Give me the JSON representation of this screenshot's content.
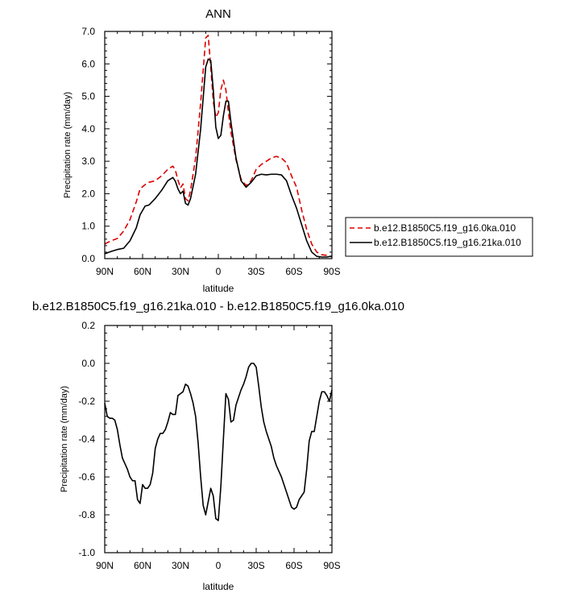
{
  "chart_data": [
    {
      "type": "line",
      "title": "ANN",
      "xlabel": "latitude",
      "ylabel": "Precipitation rate (mm/day)",
      "xlim": [
        90,
        -90
      ],
      "ylim": [
        0,
        7
      ],
      "xticks": [
        {
          "value": 90,
          "label": "90N"
        },
        {
          "value": 60,
          "label": "60N"
        },
        {
          "value": 30,
          "label": "30N"
        },
        {
          "value": 0,
          "label": "0"
        },
        {
          "value": -30,
          "label": "30S"
        },
        {
          "value": -60,
          "label": "60S"
        },
        {
          "value": -90,
          "label": "90S"
        }
      ],
      "yticks": [
        {
          "value": 0,
          "label": "0.0"
        },
        {
          "value": 1,
          "label": "1.0"
        },
        {
          "value": 2,
          "label": "2.0"
        },
        {
          "value": 3,
          "label": "3.0"
        },
        {
          "value": 4,
          "label": "4.0"
        },
        {
          "value": 5,
          "label": "5.0"
        },
        {
          "value": 6,
          "label": "6.0"
        },
        {
          "value": 7,
          "label": "7.0"
        }
      ],
      "grid": false,
      "legend": "right",
      "series": [
        {
          "name": "b.e12.B1850C5.f19_g16.0ka.010",
          "color": "#dd0000",
          "dash": true,
          "x": [
            90,
            85,
            80,
            75,
            70,
            65,
            62,
            58,
            55,
            50,
            45,
            40,
            36,
            34,
            32,
            30,
            28,
            26,
            24,
            22,
            18,
            14,
            10,
            8,
            6,
            4,
            2,
            0,
            -2,
            -4,
            -6,
            -8,
            -10,
            -14,
            -18,
            -22,
            -26,
            -30,
            -34,
            -38,
            -42,
            -46,
            -50,
            -54,
            -58,
            -62,
            -66,
            -70,
            -74,
            -78,
            -82,
            -86,
            -90
          ],
          "y": [
            0.45,
            0.55,
            0.62,
            0.85,
            1.2,
            1.75,
            2.15,
            2.28,
            2.35,
            2.4,
            2.55,
            2.75,
            2.85,
            2.72,
            2.42,
            2.18,
            2.3,
            1.85,
            1.78,
            2.1,
            3.1,
            4.8,
            6.8,
            6.88,
            5.9,
            4.85,
            4.35,
            4.5,
            5.2,
            5.5,
            5.2,
            4.5,
            3.9,
            3.05,
            2.45,
            2.25,
            2.4,
            2.75,
            2.9,
            3.0,
            3.1,
            3.15,
            3.1,
            2.95,
            2.55,
            2.2,
            1.5,
            0.9,
            0.45,
            0.2,
            0.12,
            0.1,
            0.05
          ]
        },
        {
          "name": "b.e12.B1850C5.f19_g16.21ka.010",
          "color": "#000000",
          "dash": false,
          "x": [
            90,
            85,
            80,
            75,
            70,
            65,
            62,
            58,
            55,
            50,
            45,
            40,
            36,
            34,
            32,
            30,
            28,
            26,
            24,
            22,
            18,
            14,
            10,
            8,
            6,
            4,
            2,
            0,
            -2,
            -4,
            -6,
            -8,
            -10,
            -14,
            -18,
            -22,
            -26,
            -30,
            -34,
            -38,
            -42,
            -46,
            -50,
            -54,
            -58,
            -62,
            -66,
            -70,
            -74,
            -78,
            -82,
            -86,
            -90
          ],
          "y": [
            0.15,
            0.22,
            0.28,
            0.32,
            0.55,
            0.95,
            1.35,
            1.62,
            1.65,
            1.85,
            2.1,
            2.4,
            2.5,
            2.38,
            2.15,
            2.0,
            2.08,
            1.7,
            1.65,
            1.85,
            2.6,
            4.0,
            5.9,
            6.15,
            6.1,
            5.2,
            4.05,
            3.7,
            3.8,
            4.4,
            4.85,
            4.85,
            4.2,
            3.1,
            2.4,
            2.2,
            2.35,
            2.55,
            2.6,
            2.58,
            2.6,
            2.6,
            2.58,
            2.4,
            1.95,
            1.55,
            1.05,
            0.55,
            0.2,
            0.07,
            0.05,
            0.05,
            0.08
          ]
        }
      ]
    },
    {
      "type": "line",
      "title": "b.e12.B1850C5.f19_g16.21ka.010 - b.e12.B1850C5.f19_g16.0ka.010",
      "xlabel": "latitude",
      "ylabel": "Precipitation rate (mm/day)",
      "xlim": [
        90,
        -90
      ],
      "ylim": [
        -1.0,
        0.2
      ],
      "xticks": [
        {
          "value": 90,
          "label": "90N"
        },
        {
          "value": 60,
          "label": "60N"
        },
        {
          "value": 30,
          "label": "30N"
        },
        {
          "value": 0,
          "label": "0"
        },
        {
          "value": -30,
          "label": "30S"
        },
        {
          "value": -60,
          "label": "60S"
        },
        {
          "value": -90,
          "label": "90S"
        }
      ],
      "yticks": [
        {
          "value": 0.2,
          "label": "0.2"
        },
        {
          "value": 0.0,
          "label": "0.0"
        },
        {
          "value": -0.2,
          "label": "-0.2"
        },
        {
          "value": -0.4,
          "label": "-0.4"
        },
        {
          "value": -0.6,
          "label": "-0.6"
        },
        {
          "value": -0.8,
          "label": "-0.8"
        },
        {
          "value": -1.0,
          "label": "-1.0"
        }
      ],
      "grid": false,
      "series": [
        {
          "color": "#000000",
          "dash": false,
          "x": [
            90,
            88,
            86,
            84,
            82,
            80,
            78,
            76,
            74,
            72,
            70,
            68,
            66,
            64,
            62,
            60,
            58,
            56,
            54,
            52,
            50,
            48,
            46,
            44,
            42,
            40,
            38,
            36,
            34,
            32,
            30,
            28,
            26,
            24,
            22,
            20,
            18,
            16,
            14,
            12,
            10,
            8,
            6,
            4,
            2,
            0,
            -2,
            -4,
            -6,
            -8,
            -10,
            -12,
            -14,
            -16,
            -18,
            -20,
            -22,
            -24,
            -26,
            -28,
            -30,
            -32,
            -34,
            -36,
            -38,
            -40,
            -42,
            -44,
            -46,
            -48,
            -50,
            -52,
            -54,
            -56,
            -58,
            -60,
            -62,
            -64,
            -66,
            -68,
            -70,
            -72,
            -74,
            -76,
            -78,
            -80,
            -82,
            -84,
            -86,
            -88,
            -90
          ],
          "y": [
            -0.21,
            -0.28,
            -0.29,
            -0.29,
            -0.3,
            -0.35,
            -0.43,
            -0.5,
            -0.53,
            -0.56,
            -0.6,
            -0.62,
            -0.62,
            -0.72,
            -0.74,
            -0.64,
            -0.66,
            -0.66,
            -0.64,
            -0.58,
            -0.45,
            -0.4,
            -0.37,
            -0.37,
            -0.35,
            -0.31,
            -0.26,
            -0.27,
            -0.27,
            -0.17,
            -0.16,
            -0.15,
            -0.11,
            -0.12,
            -0.16,
            -0.21,
            -0.28,
            -0.42,
            -0.6,
            -0.75,
            -0.8,
            -0.73,
            -0.66,
            -0.7,
            -0.82,
            -0.83,
            -0.65,
            -0.4,
            -0.16,
            -0.19,
            -0.31,
            -0.3,
            -0.22,
            -0.18,
            -0.14,
            -0.11,
            -0.07,
            -0.02,
            0.0,
            0.0,
            -0.02,
            -0.12,
            -0.23,
            -0.31,
            -0.36,
            -0.4,
            -0.44,
            -0.5,
            -0.54,
            -0.57,
            -0.6,
            -0.64,
            -0.68,
            -0.72,
            -0.76,
            -0.77,
            -0.76,
            -0.72,
            -0.7,
            -0.68,
            -0.56,
            -0.41,
            -0.36,
            -0.36,
            -0.28,
            -0.2,
            -0.15,
            -0.15,
            -0.17,
            -0.2,
            -0.14
          ]
        }
      ]
    }
  ]
}
